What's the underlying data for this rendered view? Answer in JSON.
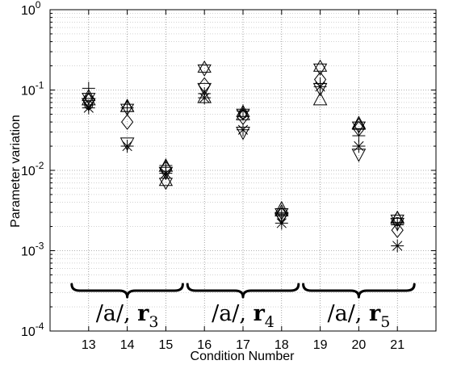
{
  "chart_data": {
    "type": "scatter",
    "title": "",
    "xlabel": "Condition Number",
    "ylabel": "Parameter variation",
    "yscale": "log",
    "xlim": [
      12,
      22
    ],
    "ylim": [
      0.0001,
      1
    ],
    "grid": true,
    "x_ticks": [
      13,
      14,
      15,
      16,
      17,
      18,
      19,
      20,
      21
    ],
    "y_ticks": [
      {
        "value": 0.0001,
        "base": "10",
        "exp": "-4"
      },
      {
        "value": 0.001,
        "base": "10",
        "exp": "-3"
      },
      {
        "value": 0.01,
        "base": "10",
        "exp": "-2"
      },
      {
        "value": 0.1,
        "base": "10",
        "exp": "-1"
      },
      {
        "value": 1,
        "base": "10",
        "exp": "0"
      }
    ],
    "series": [
      {
        "marker": "plus",
        "points": [
          [
            13,
            0.105
          ],
          [
            14,
            0.06
          ],
          [
            15,
            0.0115
          ],
          [
            16,
            0.09
          ],
          [
            17,
            0.055
          ],
          [
            18,
            0.0028
          ],
          [
            19,
            0.12
          ],
          [
            20,
            0.027
          ],
          [
            21,
            0.0021
          ]
        ]
      },
      {
        "marker": "star",
        "points": [
          [
            13,
            0.06
          ],
          [
            14,
            0.02
          ],
          [
            15,
            0.0092
          ],
          [
            16,
            0.08
          ],
          [
            17,
            0.032
          ],
          [
            18,
            0.0022
          ],
          [
            19,
            0.11
          ],
          [
            20,
            0.02
          ],
          [
            21,
            0.00115
          ]
        ]
      },
      {
        "marker": "diamond",
        "points": [
          [
            13,
            0.075
          ],
          [
            14,
            0.04
          ],
          [
            15,
            0.0105
          ],
          [
            16,
            0.115
          ],
          [
            17,
            0.046
          ],
          [
            18,
            0.0028
          ],
          [
            19,
            0.135
          ],
          [
            20,
            0.033
          ],
          [
            21,
            0.0018
          ]
        ]
      },
      {
        "marker": "triangle-up",
        "points": [
          [
            13,
            0.075
          ],
          [
            14,
            0.062
          ],
          [
            15,
            0.0112
          ],
          [
            16,
            0.08
          ],
          [
            17,
            0.049
          ],
          [
            18,
            0.0033
          ],
          [
            19,
            0.075
          ],
          [
            20,
            0.038
          ],
          [
            21,
            0.0025
          ]
        ]
      },
      {
        "marker": "triangle-down",
        "points": [
          [
            13,
            0.068
          ],
          [
            14,
            0.022
          ],
          [
            15,
            0.0095
          ],
          [
            16,
            0.105
          ],
          [
            17,
            0.03
          ],
          [
            18,
            0.0026
          ],
          [
            19,
            0.105
          ],
          [
            20,
            0.016
          ],
          [
            21,
            0.0022
          ]
        ]
      },
      {
        "marker": "hexagram",
        "points": [
          [
            13,
            0.082
          ],
          [
            14,
            0.06
          ],
          [
            15,
            0.0072
          ],
          [
            16,
            0.185
          ],
          [
            17,
            0.052
          ],
          [
            18,
            0.003
          ],
          [
            19,
            0.19
          ],
          [
            20,
            0.036
          ],
          [
            21,
            0.0025
          ]
        ]
      },
      {
        "marker": "circle",
        "points": [
          [
            13,
            0.065
          ],
          [
            17,
            0.05
          ],
          [
            21,
            0.0023
          ]
        ]
      }
    ],
    "annotations": [
      {
        "from": 13,
        "to": 15,
        "prefix": "/a/, ",
        "bold": "r",
        "subscript": "3"
      },
      {
        "from": 16,
        "to": 18,
        "prefix": "/a/, ",
        "bold": "r",
        "subscript": "4"
      },
      {
        "from": 19,
        "to": 21,
        "prefix": "/a/, ",
        "bold": "r",
        "subscript": "5"
      }
    ]
  }
}
